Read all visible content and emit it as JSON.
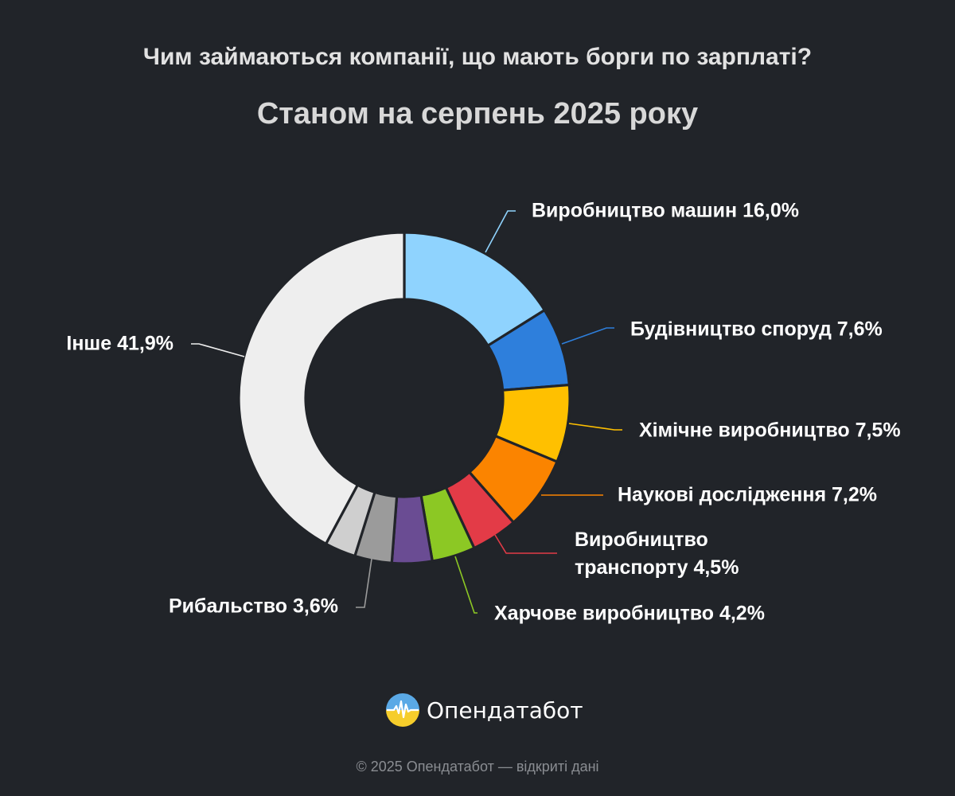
{
  "chart_data": {
    "type": "pie",
    "donut": true,
    "title": "Чим займаються компанії, що мають борги по зарплаті?",
    "subtitle": "Станом на серпень 2025 року",
    "slices": [
      {
        "label": "Виробництво машин",
        "value_label": "16,0%",
        "value": 16.0,
        "color": "#8fd3fe"
      },
      {
        "label": "Будівництво споруд",
        "value_label": "7,6%",
        "value": 7.6,
        "color": "#2e7fdc"
      },
      {
        "label": "Хімічне виробництво",
        "value_label": "7,5%",
        "value": 7.5,
        "color": "#ffc000"
      },
      {
        "label": "Наукові дослідження",
        "value_label": "7,2%",
        "value": 7.2,
        "color": "#fb8400"
      },
      {
        "label_lines": [
          "Виробництво",
          "транспорту"
        ],
        "value_label": "4,5%",
        "value": 4.5,
        "color": "#e33b47"
      },
      {
        "label": "Харчове виробництво",
        "value_label": "4,2%",
        "value": 4.2,
        "color": "#8cc824"
      },
      {
        "label": "",
        "value_label": "",
        "value": 3.9,
        "color": "#6a4c93"
      },
      {
        "label": "Рибальство",
        "value_label": "3,6%",
        "value": 3.6,
        "color": "#9b9b9b"
      },
      {
        "label": "",
        "value_label": "",
        "value": 3.0,
        "color": "#cfcfcf"
      },
      {
        "label": "Інше",
        "value_label": "41,9%",
        "value": 41.9,
        "color": "#eeeeee"
      }
    ]
  },
  "logo": {
    "text": "Опендатабот"
  },
  "footer": "© 2025 Опендатабот — відкриті дані"
}
